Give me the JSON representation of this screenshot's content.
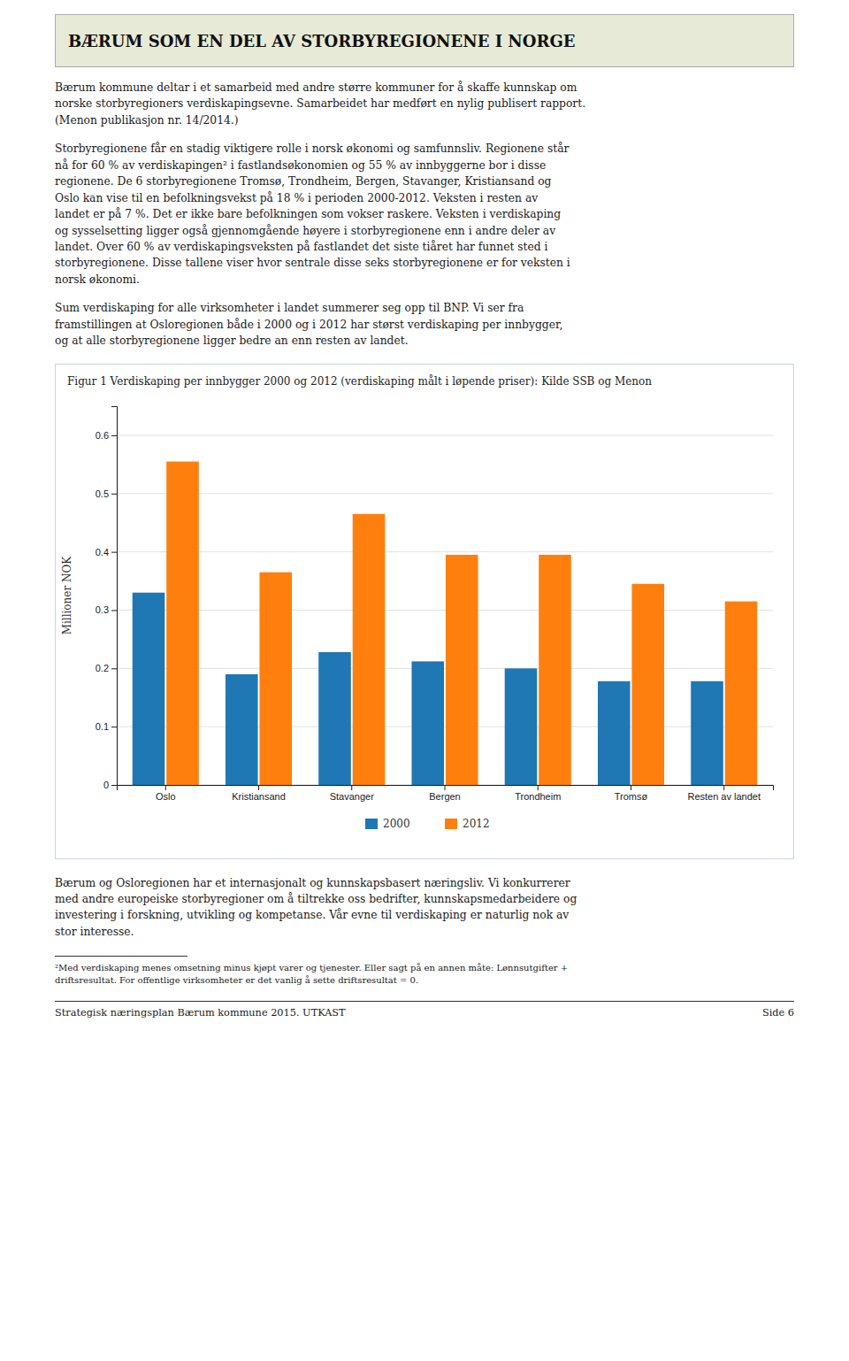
{
  "page_title": "BÆRUM SOM EN DEL AV STORBYREGIONENE I NORGE",
  "body_text_1": "Bærum kommune deltar i et samarbeid med andre større kommuner for å skaffe kunnskap om\nnorske storbyregioners verdiskapingsevne. Samarbeidet har medført en nylig publisert rapport.\n(Menon publikasjon nr. 14/2014.)",
  "body_text_2": "Storbyregionene får en stadig viktigere rolle i norsk økonomi og samfunnsliv. Regionene står\nnå for 60 % av verdiskapingen² i fastlandsøkonomien og 55 % av innbyggerne bor i disse\nregionene. De 6 storbyregionene Tromsø, Trondheim, Bergen, Stavanger, Kristiansand og\nOslo kan vise til en befolkningsvekst på 18 % i perioden 2000-2012. Veksten i resten av\nlandet er på 7 %. Det er ikke bare befolkningen som vokser raskere. Veksten i verdiskaping\nog sysselsetting ligger også gjennomgående høyere i storbyregionene enn i andre deler av\nlandet. Over 60 % av verdiskapingsveksten på fastlandet det siste tiåret har funnet sted i\nstorbyregionene. Disse tallene viser hvor sentrale disse seks storbyregionene er for veksten i\nnorsk økonomi.",
  "body_text_3": "Sum verdiskaping for alle virksomheter i landet summerer seg opp til BNP. Vi ser fra\nframstillingen at Osloregionen både i 2000 og i 2012 har størst verdiskaping per innbygger,\nog at alle storbyregionene ligger bedre an enn resten av landet.",
  "chart_data": {
    "type": "bar",
    "title": "Figur 1 Verdiskaping per innbygger 2000 og 2012 (verdiskaping målt i løpende priser): Kilde SSB og Menon",
    "categories": [
      "Oslo",
      "Kristiansand",
      "Stavanger",
      "Bergen",
      "Trondheim",
      "Tromsø",
      "Resten av landet"
    ],
    "series": [
      {
        "name": "2000",
        "values": [
          0.33,
          0.19,
          0.228,
          0.212,
          0.2,
          0.178,
          0.178
        ]
      },
      {
        "name": "2012",
        "values": [
          0.555,
          0.365,
          0.465,
          0.395,
          0.395,
          0.345,
          0.315
        ]
      }
    ],
    "ylabel": "Millioner NOK",
    "ylim": [
      0,
      0.65
    ],
    "yticks": [
      0,
      0.1,
      0.2,
      0.3,
      0.4,
      0.5,
      0.6
    ],
    "grid": true,
    "legend": "bottom"
  },
  "body_text_4": "Bærum og Osloregionen har et internasjonalt og kunnskapsbasert næringsliv. Vi konkurrerer\nmed andre europeiske storbyregioner om å tiltrekke oss bedrifter, kunnskapsmedarbeidere og\ninvestering i forskning, utvikling og kompetanse. Vår evne til verdiskaping er naturlig nok av\nstor interesse.",
  "footnote": "²Med verdiskaping menes omsetning minus kjøpt varer og tjenester. Eller sagt på en annen måte: Lønnsutgifter +\ndriftsresultat. For offentlige virksomheter er det vanlig å sette driftsresultat = 0.",
  "footer_text": "Strategisk næringsplan Bærum kommune 2015. UTKAST",
  "footer_page": "Side 6"
}
